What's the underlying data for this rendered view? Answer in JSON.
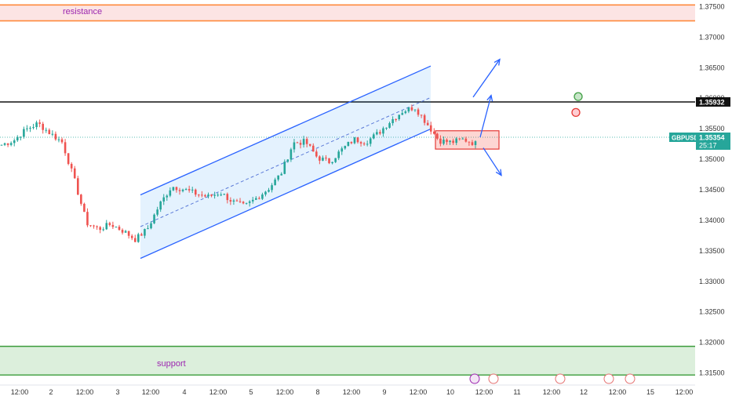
{
  "symbol": "GBPUSD",
  "chart_data": {
    "type": "candlestick",
    "symbol": "GBPUSD",
    "ylim": [
      1.3145,
      1.3755
    ],
    "y_ticks": [
      1.375,
      1.37,
      1.365,
      1.36,
      1.355,
      1.35,
      1.345,
      1.34,
      1.335,
      1.33,
      1.325,
      1.32,
      1.315
    ],
    "y_tick_labels": [
      "1.37500",
      "1.37000",
      "1.36500",
      "1.36000",
      "1.35500",
      "1.35000",
      "1.34500",
      "1.34000",
      "1.33500",
      "1.33000",
      "1.32500",
      "1.32000",
      "1.31500"
    ],
    "x_labels": [
      "12:00",
      "2",
      "12:00",
      "3",
      "12:00",
      "4",
      "12:00",
      "5",
      "12:00",
      "8",
      "12:00",
      "9",
      "12:00",
      "10",
      "12:00",
      "11",
      "12:00",
      "12",
      "12:00",
      "15",
      "12:00"
    ],
    "current_price": {
      "value": 1.35354,
      "label": "1.35354",
      "countdown": "25:17"
    },
    "horizontal_line": {
      "value": 1.35932,
      "label": "1.35932"
    },
    "resistance_zone": {
      "label": "resistance",
      "top": 1.3752,
      "bottom": 1.3726
    },
    "support_zone": {
      "label": "support",
      "top": 1.3193,
      "bottom": 1.3146
    },
    "channel": {
      "upper_start": 1.3441,
      "upper_end": 1.3652,
      "lower_start": 1.3337,
      "lower_end": 1.3549
    },
    "consolidation_box": {
      "top": 1.3546,
      "bottom": 1.3516
    },
    "markers": [
      {
        "type": "green-circle",
        "price": 1.3602
      },
      {
        "type": "red-circle",
        "price": 1.3576
      }
    ],
    "price_path": [
      1.3523,
      1.353,
      1.3548,
      1.3558,
      1.3542,
      1.3527,
      1.3465,
      1.3395,
      1.3385,
      1.3393,
      1.3382,
      1.3368,
      1.3385,
      1.3425,
      1.3455,
      1.345,
      1.3443,
      1.3438,
      1.3445,
      1.343,
      1.3422,
      1.3436,
      1.3452,
      1.3476,
      1.3526,
      1.3528,
      1.3502,
      1.3495,
      1.3515,
      1.3532,
      1.3528,
      1.3542,
      1.3562,
      1.3578,
      1.3585,
      1.3558,
      1.353,
      1.3527,
      1.3532,
      1.3525
    ]
  }
}
